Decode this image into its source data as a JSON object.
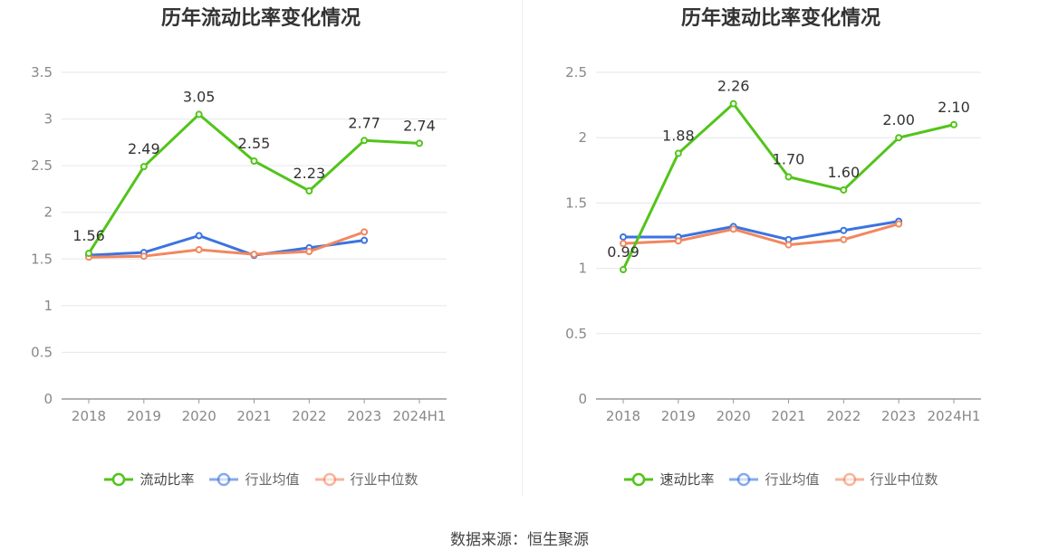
{
  "source": "数据来源：恒生聚源",
  "chart_data": [
    {
      "type": "line",
      "title": "历年流动比率变化情况",
      "categories": [
        "2018",
        "2019",
        "2020",
        "2021",
        "2022",
        "2023",
        "2024H1"
      ],
      "ylim": [
        0,
        3.5
      ],
      "yticks": [
        "0",
        "0.5",
        "1",
        "1.5",
        "2",
        "2.5",
        "3",
        "3.5"
      ],
      "grid": true,
      "legend_position": "bottom",
      "series": [
        {
          "name": "流动比率",
          "color": "#52c41a",
          "values": [
            1.56,
            2.49,
            3.05,
            2.55,
            2.23,
            2.77,
            2.74
          ],
          "labels": [
            "1.56",
            "2.49",
            "3.05",
            "2.55",
            "2.23",
            "2.77",
            "2.74"
          ]
        },
        {
          "name": "行业均值",
          "color": "#3b73e0",
          "values": [
            1.54,
            1.57,
            1.75,
            1.54,
            1.62,
            1.7,
            null
          ]
        },
        {
          "name": "行业中位数",
          "color": "#f2875f",
          "values": [
            1.52,
            1.53,
            1.6,
            1.55,
            1.58,
            1.79,
            null
          ]
        }
      ]
    },
    {
      "type": "line",
      "title": "历年速动比率变化情况",
      "categories": [
        "2018",
        "2019",
        "2020",
        "2021",
        "2022",
        "2023",
        "2024H1"
      ],
      "ylim": [
        0,
        2.5
      ],
      "yticks": [
        "0",
        "0.5",
        "1",
        "1.5",
        "2",
        "2.5"
      ],
      "grid": true,
      "legend_position": "bottom",
      "series": [
        {
          "name": "速动比率",
          "color": "#52c41a",
          "values": [
            0.99,
            1.88,
            2.26,
            1.7,
            1.6,
            2.0,
            2.1
          ],
          "labels": [
            "0.99",
            "1.88",
            "2.26",
            "1.70",
            "1.60",
            "2.00",
            "2.10"
          ]
        },
        {
          "name": "行业均值",
          "color": "#3b73e0",
          "values": [
            1.24,
            1.24,
            1.32,
            1.22,
            1.29,
            1.36,
            null
          ]
        },
        {
          "name": "行业中位数",
          "color": "#f2875f",
          "values": [
            1.19,
            1.21,
            1.3,
            1.18,
            1.22,
            1.34,
            null
          ]
        }
      ]
    }
  ]
}
